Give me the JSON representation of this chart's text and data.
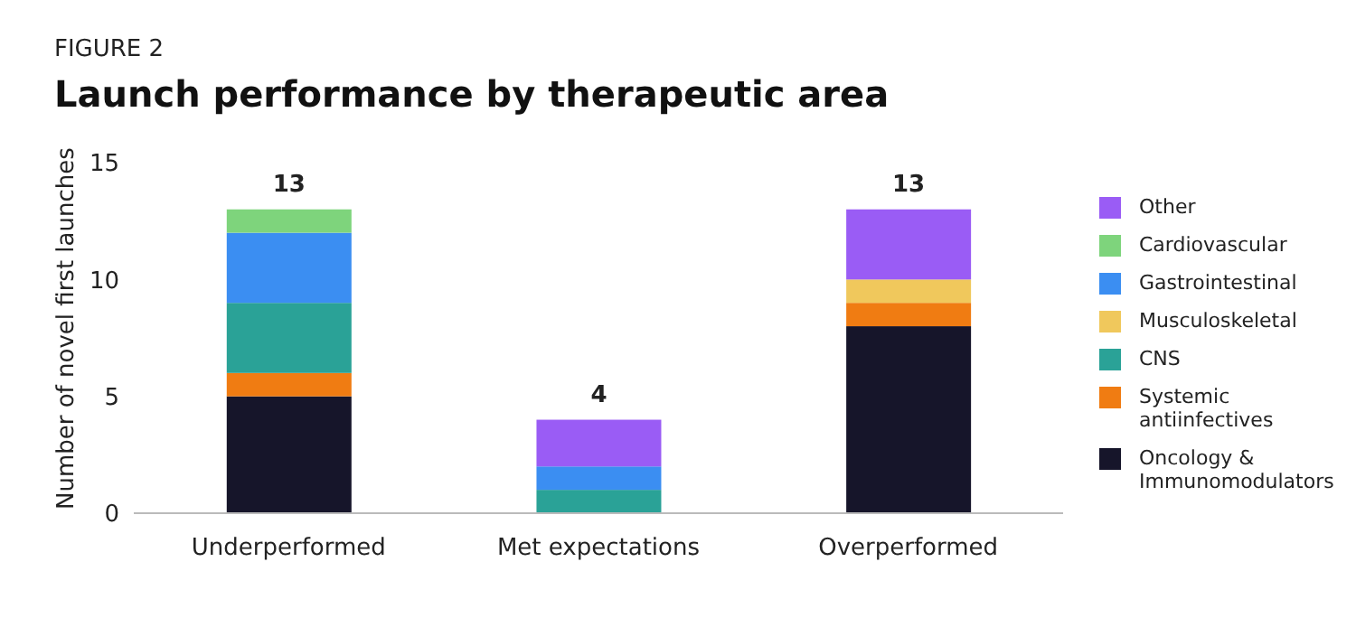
{
  "chart_data": {
    "type": "bar",
    "subtitle": "FIGURE 2",
    "title": "Launch performance by therapeutic area",
    "ylabel": "Number of novel first launches",
    "categories": [
      "Underperformed",
      "Met expectations",
      "Overperformed"
    ],
    "stacked": true,
    "legend": "right",
    "ylim": [
      0,
      15
    ],
    "yticks": [
      0,
      5,
      10,
      15
    ],
    "totals": [
      "13",
      "4",
      "13"
    ],
    "series": [
      {
        "name": "Oncology & Immunomodulators",
        "color": "#16152a",
        "values": [
          5,
          null,
          8
        ]
      },
      {
        "name": "Systemic antiinfectives",
        "color": "#f07c12",
        "values": [
          1,
          null,
          1
        ]
      },
      {
        "name": "CNS",
        "color": "#2aa297",
        "values": [
          3,
          1,
          null
        ]
      },
      {
        "name": "Musculoskeletal",
        "color": "#f0c85c",
        "values": [
          null,
          null,
          1
        ]
      },
      {
        "name": "Gastrointestinal",
        "color": "#3b8ef2",
        "values": [
          3,
          1,
          null
        ]
      },
      {
        "name": "Cardiovascular",
        "color": "#7ed47c",
        "values": [
          1,
          null,
          null
        ]
      },
      {
        "name": "Other",
        "color": "#9a5cf5",
        "values": [
          null,
          2,
          3
        ]
      }
    ]
  }
}
